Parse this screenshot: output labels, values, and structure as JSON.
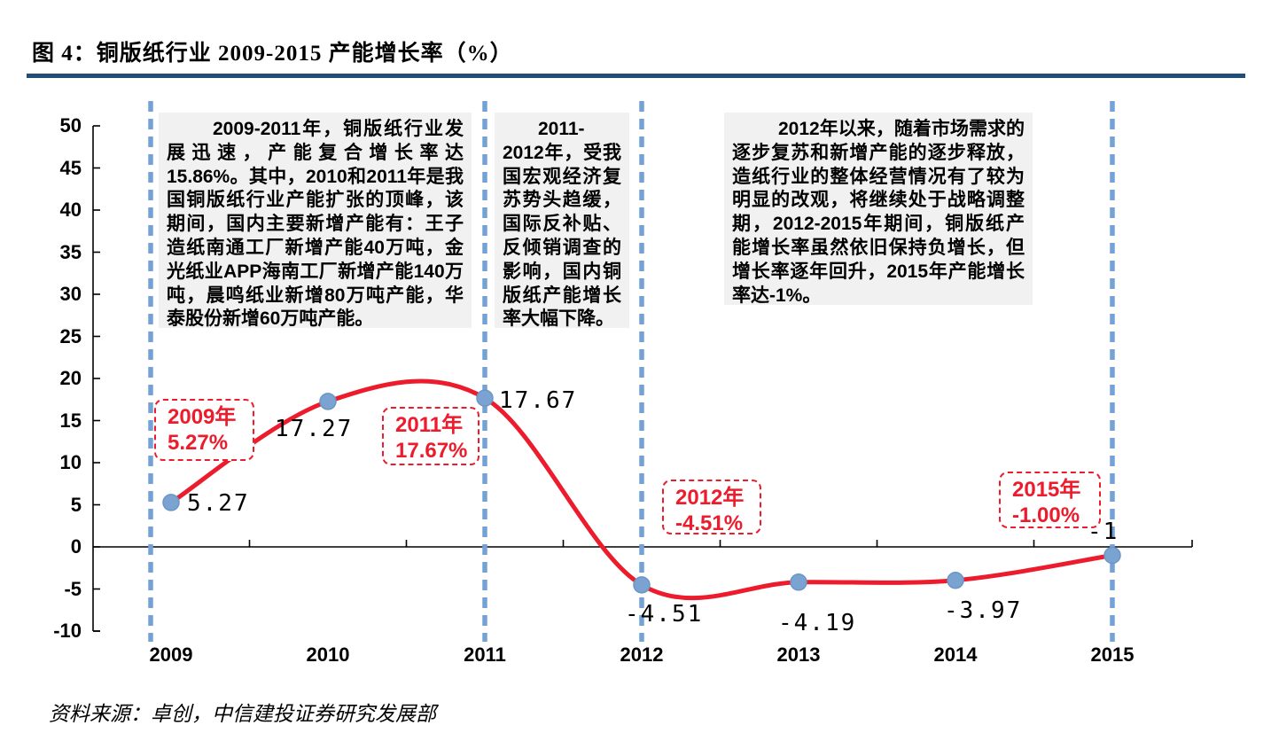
{
  "figure": {
    "title": "图 4：铜版纸行业 2009-2015 产能增长率（%）",
    "source": "资料来源：卓创，中信建投证券研究发展部"
  },
  "chart_data": {
    "type": "line",
    "title": "铜版纸行业 2009-2015 产能增长率（%）",
    "categories": [
      "2009",
      "2010",
      "2011",
      "2012",
      "2013",
      "2014",
      "2015"
    ],
    "values": [
      5.27,
      17.27,
      17.67,
      -4.51,
      -4.19,
      -3.97,
      -1
    ],
    "point_labels": [
      "5.27",
      "17.27",
      "17.67",
      "-4.51",
      "-4.19",
      "-3.97",
      "-1"
    ],
    "xlabel": "",
    "ylabel": "",
    "ylim": [
      -10,
      50
    ],
    "yticks": [
      50,
      45,
      40,
      35,
      30,
      25,
      20,
      15,
      10,
      5,
      0,
      -5,
      -10
    ],
    "grid": false,
    "legend": false,
    "line_color": "#ec1c2d",
    "marker_color": "#7ba3d1",
    "marker_edge_color": "#6a96c6",
    "guide_line_color": "#74a2d6",
    "guide_years": [
      "2009",
      "2011",
      "2012",
      "2015"
    ]
  },
  "notes": [
    {
      "text": "2009-2011年，铜版纸行业发展迅速，产能复合增长率达15.86%。其中，2010和2011年是我国铜版纸行业产能扩张的顶峰，该期间，国内主要新增产能有：王子造纸南通工厂新增产能40万吨，金光纸业APP海南工厂新增产能140万吨，晨鸣纸业新增80万吨产能，华泰股份新增60万吨产能。"
    },
    {
      "text": "2011-2012年，受我国宏观经济复苏势头趋缓，国际反补贴、反倾销调查的影响，国内铜版纸产能增长率大幅下降。"
    },
    {
      "text": "2012年以来，随着市场需求的逐步复苏和新增产能的逐步释放，造纸行业的整体经营情况有了较为明显的改观，将继续处于战略调整期，2012-2015年期间，铜版纸产能增长率虽然依旧保持负增长，但增长率逐年回升，2015年产能增长率达-1%。"
    }
  ],
  "callouts": [
    {
      "year": "2009年",
      "value": "5.27%"
    },
    {
      "year": "2011年",
      "value": "17.67%"
    },
    {
      "year": "2012年",
      "value": "-4.51%"
    },
    {
      "year": "2015年",
      "value": "-1.00%"
    }
  ],
  "colors": {
    "accent_red": "#ec1c2d",
    "steel_blue": "#74a2d6",
    "title_rule_navy": "#1f4e79",
    "note_background": "#f1f1f1",
    "axis_black": "#000000"
  }
}
